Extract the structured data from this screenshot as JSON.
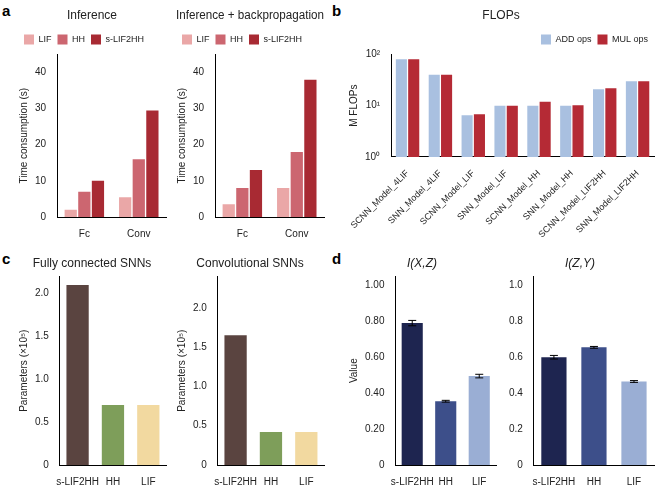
{
  "chart_data": [
    {
      "panel": "a",
      "type": "bar",
      "title": "Inference",
      "y_label": "Time consumption (s)",
      "categories": [
        "Fc",
        "Conv"
      ],
      "series": [
        {
          "name": "LIF",
          "color": "#eaa7a7",
          "values": [
            2,
            5.5
          ]
        },
        {
          "name": "HH",
          "color": "#cc6670",
          "values": [
            7,
            16
          ]
        },
        {
          "name": "s-LIF2HH",
          "color": "#a82a33",
          "values": [
            10,
            29.5
          ]
        }
      ],
      "ylim": [
        0,
        45
      ],
      "yticks": [
        0,
        10,
        20,
        30,
        40
      ],
      "legend": "upper left",
      "grid": false
    },
    {
      "type": "bar",
      "title": "Inference + backpropagation",
      "y_label": "Time consumption (s)",
      "categories": [
        "Fc",
        "Conv"
      ],
      "series": [
        {
          "name": "LIF",
          "color": "#eaa7a7",
          "values": [
            3.5,
            8
          ]
        },
        {
          "name": "HH",
          "color": "#cc6670",
          "values": [
            8,
            18
          ]
        },
        {
          "name": "s-LIF2HH",
          "color": "#a82a33",
          "values": [
            13,
            38
          ]
        }
      ],
      "ylim": [
        0,
        45
      ],
      "yticks": [
        0,
        10,
        20,
        30,
        40
      ],
      "legend": "upper left",
      "grid": false
    },
    {
      "panel": "b",
      "type": "bar",
      "title": "FLOPs",
      "y_label": "M FLOPs",
      "categories": [
        "SCNN_Model_4LIF",
        "SNN_Model_4LIF",
        "SCNN_Model_LIF",
        "SNN_Model_LIF",
        "SCNN_Model_HH",
        "SNN_Model_HH",
        "SCNN_Model_LIF2HH",
        "SNN_Model_LIF2HH"
      ],
      "series": [
        {
          "name": "ADD ops",
          "color": "#a9c0e0",
          "values": [
            80,
            40,
            6.5,
            10,
            10,
            10,
            21,
            30
          ]
        },
        {
          "name": "MUL ops",
          "color": "#b52a35",
          "values": [
            80,
            40,
            6.8,
            10,
            12,
            10.2,
            22,
            30
          ]
        }
      ],
      "log": "y",
      "ylim": [
        1,
        100
      ],
      "yticks": [
        {
          "value": 1,
          "label": "10⁰"
        },
        {
          "value": 10,
          "label": "10¹"
        },
        {
          "value": 100,
          "label": "10²"
        }
      ],
      "legend": "upper right",
      "grid": false
    },
    {
      "panel": "c",
      "type": "bar",
      "title": "Fully connected SNNs",
      "y_label": "Parameters (×10⁵)",
      "categories": [
        "s-LIF2HH",
        "HH",
        "LIF"
      ],
      "values": [
        2.1,
        0.7,
        0.7
      ],
      "colors": [
        "#5a4440",
        "#7e9e5a",
        "#f2d9a0"
      ],
      "ylim": [
        0,
        2.2
      ],
      "yticks": [
        0,
        0.5,
        {
          "value": 1,
          "label": "1.0"
        },
        1.5,
        {
          "value": 2,
          "label": "2.0"
        }
      ],
      "grid": false
    },
    {
      "type": "bar",
      "title": "Convolutional SNNs",
      "y_label": "Parameters (×10⁵)",
      "categories": [
        "s-LIF2HH",
        "HH",
        "LIF"
      ],
      "values": [
        1.65,
        0.42,
        0.42
      ],
      "colors": [
        "#5a4440",
        "#7e9e5a",
        "#f2d9a0"
      ],
      "ylim": [
        0,
        2.4
      ],
      "yticks": [
        0,
        0.5,
        {
          "value": 1,
          "label": "1.0"
        },
        1.5,
        {
          "value": 2,
          "label": "2.0"
        }
      ],
      "grid": false
    },
    {
      "panel": "d",
      "type": "bar",
      "title": "I(X,Z)",
      "y_label": "Value",
      "categories": [
        "s-LIF2HH",
        "HH",
        "LIF"
      ],
      "values": [
        0.79,
        0.355,
        0.495
      ],
      "errors": [
        0.015,
        0.005,
        0.01
      ],
      "colors": [
        "#1e2550",
        "#3d4f8a",
        "#9aaed4"
      ],
      "ylim": [
        0,
        1.05
      ],
      "yticks": [
        0,
        {
          "value": 0.2,
          "label": "0.20"
        },
        {
          "value": 0.4,
          "label": "0.40"
        },
        {
          "value": 0.6,
          "label": "0.60"
        },
        {
          "value": 0.8,
          "label": "0.80"
        },
        {
          "value": 1,
          "label": "1.00"
        }
      ],
      "grid": false
    },
    {
      "type": "bar",
      "title": "I(Z,Y)",
      "categories": [
        "s-LIF2HH",
        "HH",
        "LIF"
      ],
      "values": [
        0.6,
        0.655,
        0.465
      ],
      "errors": [
        0.01,
        0.005,
        0.005
      ],
      "colors": [
        "#1e2550",
        "#3d4f8a",
        "#9aaed4"
      ],
      "ylim": [
        0,
        1.05
      ],
      "yticks": [
        0,
        0.2,
        0.4,
        0.6,
        0.8,
        {
          "value": 1,
          "label": "1.0"
        }
      ],
      "grid": false
    }
  ]
}
